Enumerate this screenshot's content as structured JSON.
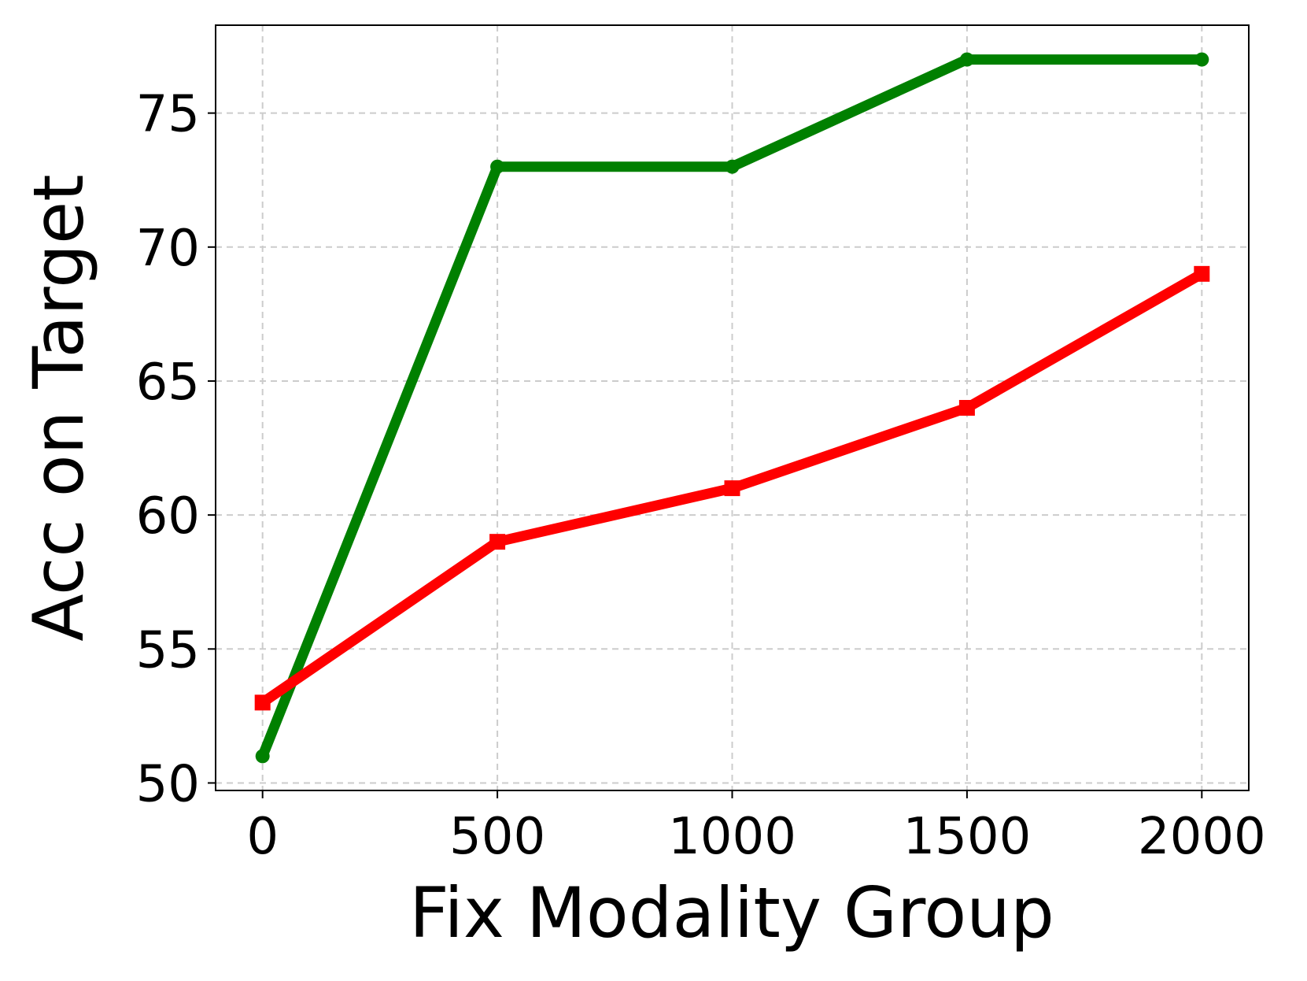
{
  "chart_data": {
    "type": "line",
    "xlabel": "Fix Modality Group",
    "ylabel": "Acc on Target",
    "x": [
      0,
      500,
      1000,
      1500,
      2000
    ],
    "series": [
      {
        "color": "#008000",
        "marker": "circle",
        "values": [
          51,
          73,
          73,
          77,
          77
        ]
      },
      {
        "color": "#ff0000",
        "marker": "square",
        "values": [
          53,
          59,
          61,
          64,
          69
        ]
      }
    ],
    "xlim": [
      -100,
      2100
    ],
    "xticks": [
      0,
      500,
      1000,
      1500,
      2000
    ],
    "ylim": [
      49.72,
      78.28
    ],
    "yticks": [
      50,
      55,
      60,
      65,
      70,
      75
    ],
    "grid": true
  }
}
